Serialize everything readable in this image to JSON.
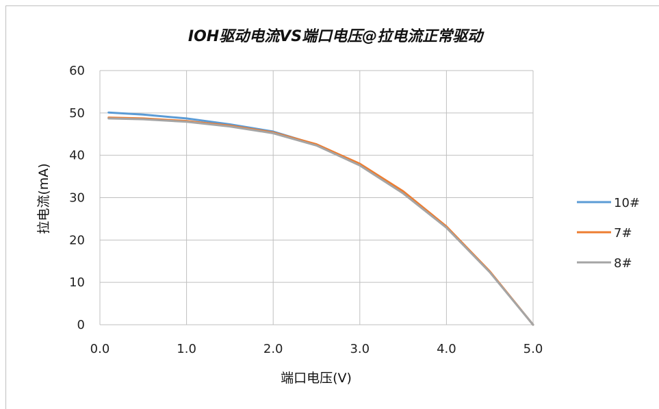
{
  "chart_data": {
    "type": "line",
    "title": "IOH驱动电流VS端口电压@拉电流正常驱动",
    "xlabel": "端口电压(V)",
    "ylabel": "拉电流(mA)",
    "xlim": [
      0,
      5
    ],
    "ylim": [
      0,
      60
    ],
    "x_ticks": [
      "0.0",
      "1.0",
      "2.0",
      "3.0",
      "4.0",
      "5.0"
    ],
    "y_ticks": [
      "0",
      "10",
      "20",
      "30",
      "40",
      "50",
      "60"
    ],
    "grid": true,
    "legend_position": "right",
    "series": [
      {
        "name": "10#",
        "color": "#5b9bd5",
        "points": [
          [
            0.1,
            50.1
          ],
          [
            0.5,
            49.6
          ],
          [
            1.0,
            48.7
          ],
          [
            1.5,
            47.3
          ],
          [
            2.0,
            45.6
          ],
          [
            2.5,
            42.5
          ],
          [
            3.0,
            37.8
          ],
          [
            3.5,
            31.2
          ],
          [
            4.0,
            23.0
          ],
          [
            4.5,
            12.5
          ],
          [
            5.0,
            0.0
          ]
        ]
      },
      {
        "name": "7#",
        "color": "#ed7d31",
        "points": [
          [
            0.1,
            48.9
          ],
          [
            0.5,
            48.7
          ],
          [
            1.0,
            48.1
          ],
          [
            1.5,
            47.0
          ],
          [
            2.0,
            45.4
          ],
          [
            2.5,
            42.6
          ],
          [
            3.0,
            38.0
          ],
          [
            3.5,
            31.5
          ],
          [
            4.0,
            23.2
          ],
          [
            4.5,
            12.6
          ],
          [
            5.0,
            0.0
          ]
        ]
      },
      {
        "name": "8#",
        "color": "#a5a5a5",
        "points": [
          [
            0.1,
            48.7
          ],
          [
            0.5,
            48.5
          ],
          [
            1.0,
            47.9
          ],
          [
            1.5,
            46.8
          ],
          [
            2.0,
            45.2
          ],
          [
            2.5,
            42.3
          ],
          [
            3.0,
            37.6
          ],
          [
            3.5,
            31.0
          ],
          [
            4.0,
            22.9
          ],
          [
            4.5,
            12.4
          ],
          [
            5.0,
            0.0
          ]
        ]
      }
    ]
  }
}
